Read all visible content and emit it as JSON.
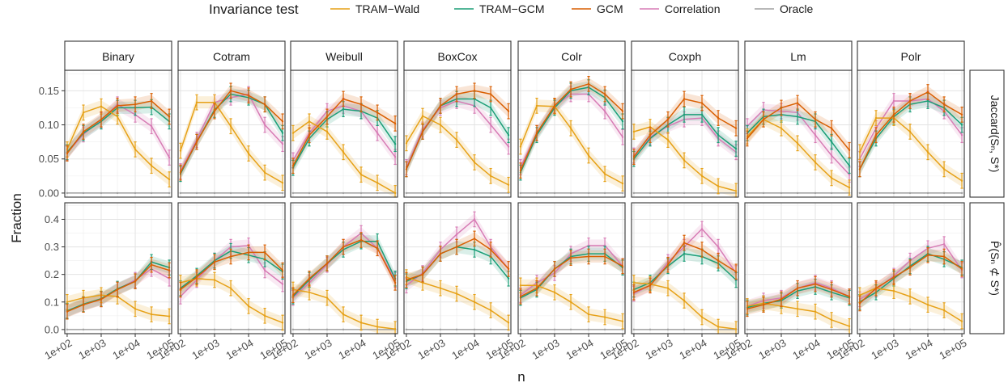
{
  "chart_data": {
    "type": "line",
    "legend": {
      "title": "Invariance test",
      "position": "top",
      "entries": [
        "TRAM−Wald",
        "TRAM−GCM",
        "GCM",
        "Correlation",
        "Oracle"
      ]
    },
    "colors": {
      "TRAM−Wald": "#E6A117",
      "TRAM−GCM": "#1B9E77",
      "GCM": "#D95F02",
      "Correlation": "#D77CB5",
      "Oracle": "#A0A0A0"
    },
    "xlabel": "n",
    "ylabel": "Fraction",
    "x_scale": "log10",
    "x": [
      100,
      300,
      1000,
      3000,
      10000,
      30000,
      100000
    ],
    "x_ticks": [
      {
        "value": 100,
        "label": "1e+02"
      },
      {
        "value": 1000,
        "label": "1e+03"
      },
      {
        "value": 10000,
        "label": "1e+04"
      },
      {
        "value": 100000,
        "label": "1e+05"
      }
    ],
    "columns": [
      "Binary",
      "Cotram",
      "Weibull",
      "BoxCox",
      "Colr",
      "Coxph",
      "Lm",
      "Polr"
    ],
    "rows": [
      {
        "strip": "Jaccard(Sₙ, S*)",
        "ylim": [
          -0.006,
          0.18
        ],
        "yticks": [
          0.0,
          0.05,
          0.1,
          0.15
        ],
        "ytick_labels": [
          "0.00",
          "0.05",
          "0.10",
          "0.15"
        ],
        "panels": {
          "Binary": {
            "TRAM−Wald": [
              0.064,
              0.118,
              0.127,
              0.112,
              0.064,
              0.04,
              0.02
            ],
            "TRAM−GCM": [
              0.06,
              0.088,
              0.105,
              0.125,
              0.125,
              0.126,
              0.105
            ],
            "GCM": [
              0.058,
              0.09,
              0.108,
              0.128,
              0.13,
              0.135,
              0.112
            ],
            "Correlation": [
              0.059,
              0.086,
              0.107,
              0.13,
              0.115,
              0.098,
              0.052
            ],
            "Oracle": [
              0,
              0,
              0,
              0,
              0,
              0,
              0
            ]
          },
          "Cotram": {
            "TRAM−Wald": [
              0.062,
              0.133,
              0.133,
              0.098,
              0.058,
              0.03,
              0.015
            ],
            "TRAM−GCM": [
              0.028,
              0.075,
              0.122,
              0.145,
              0.14,
              0.13,
              0.088
            ],
            "GCM": [
              0.03,
              0.075,
              0.12,
              0.15,
              0.143,
              0.13,
              0.105
            ],
            "Correlation": [
              0.032,
              0.078,
              0.133,
              0.14,
              0.145,
              0.1,
              0.072
            ],
            "Oracle": [
              0,
              0,
              0,
              0,
              0,
              0,
              0
            ]
          },
          "Weibull": {
            "TRAM−Wald": [
              0.088,
              0.105,
              0.09,
              0.06,
              0.027,
              0.015,
              0.0
            ],
            "TRAM−GCM": [
              0.037,
              0.08,
              0.108,
              0.123,
              0.12,
              0.11,
              0.072
            ],
            "GCM": [
              0.04,
              0.085,
              0.112,
              0.138,
              0.13,
              0.118,
              0.102
            ],
            "Correlation": [
              0.048,
              0.088,
              0.12,
              0.128,
              0.12,
              0.088,
              0.053
            ],
            "Oracle": [
              0,
              0,
              0,
              0,
              0,
              0,
              0
            ]
          },
          "BoxCox": {
            "TRAM−Wald": [
              0.073,
              0.113,
              0.1,
              0.078,
              0.045,
              0.025,
              0.012
            ],
            "TRAM−GCM": [
              0.035,
              0.09,
              0.128,
              0.138,
              0.138,
              0.125,
              0.085
            ],
            "GCM": [
              0.035,
              0.09,
              0.128,
              0.145,
              0.15,
              0.145,
              0.12
            ],
            "Correlation": [
              0.038,
              0.093,
              0.125,
              0.135,
              0.128,
              0.1,
              0.068
            ],
            "Oracle": [
              0,
              0,
              0,
              0,
              0,
              0,
              0
            ]
          },
          "Colr": {
            "TRAM−Wald": [
              0.068,
              0.128,
              0.127,
              0.095,
              0.055,
              0.028,
              0.014
            ],
            "TRAM−GCM": [
              0.03,
              0.085,
              0.125,
              0.15,
              0.155,
              0.14,
              0.105
            ],
            "GCM": [
              0.033,
              0.088,
              0.128,
              0.152,
              0.16,
              0.145,
              0.12
            ],
            "Correlation": [
              0.038,
              0.088,
              0.127,
              0.145,
              0.145,
              0.12,
              0.082
            ],
            "Oracle": [
              0,
              0,
              0,
              0,
              0,
              0,
              0
            ]
          },
          "Coxph": {
            "TRAM−Wald": [
              0.09,
              0.097,
              0.078,
              0.048,
              0.025,
              0.01,
              0.003
            ],
            "TRAM−GCM": [
              0.05,
              0.08,
              0.1,
              0.115,
              0.115,
              0.085,
              0.065
            ],
            "GCM": [
              0.053,
              0.085,
              0.108,
              0.138,
              0.132,
              0.11,
              0.095
            ],
            "Correlation": [
              0.055,
              0.082,
              0.098,
              0.108,
              0.11,
              0.08,
              0.06
            ],
            "Oracle": [
              0,
              0,
              0,
              0,
              0,
              0,
              0
            ]
          },
          "Lm": {
            "TRAM−Wald": [
              0.083,
              0.108,
              0.095,
              0.073,
              0.045,
              0.022,
              0.008
            ],
            "TRAM−GCM": [
              0.088,
              0.112,
              0.115,
              0.112,
              0.105,
              0.075,
              0.04
            ],
            "GCM": [
              0.08,
              0.108,
              0.125,
              0.132,
              0.108,
              0.095,
              0.063
            ],
            "Correlation": [
              0.098,
              0.122,
              0.12,
              0.118,
              0.085,
              0.055,
              0.027
            ],
            "Oracle": [
              0,
              0,
              0,
              0,
              0,
              0,
              0
            ]
          },
          "Polr": {
            "TRAM−Wald": [
              0.06,
              0.11,
              0.11,
              0.09,
              0.06,
              0.035,
              0.018
            ],
            "TRAM−GCM": [
              0.035,
              0.08,
              0.112,
              0.13,
              0.135,
              0.125,
              0.1
            ],
            "GCM": [
              0.035,
              0.085,
              0.115,
              0.135,
              0.148,
              0.13,
              0.115
            ],
            "Correlation": [
              0.05,
              0.095,
              0.135,
              0.135,
              0.138,
              0.12,
              0.085
            ],
            "Oracle": [
              0,
              0,
              0,
              0,
              0,
              0,
              0
            ]
          }
        }
      },
      {
        "strip": "P̂(Sₙ ⊄ S*)",
        "ylim": [
          -0.015,
          0.46
        ],
        "yticks": [
          0.0,
          0.1,
          0.2,
          0.3,
          0.4
        ],
        "ytick_labels": [
          "0.0",
          "0.1",
          "0.2",
          "0.3",
          "0.4"
        ],
        "panels": {
          "Binary": {
            "TRAM−Wald": [
              0.1,
              0.115,
              0.125,
              0.12,
              0.075,
              0.055,
              0.048
            ],
            "TRAM−GCM": [
              0.068,
              0.092,
              0.112,
              0.148,
              0.175,
              0.245,
              0.225
            ],
            "GCM": [
              0.065,
              0.09,
              0.11,
              0.145,
              0.175,
              0.235,
              0.215
            ],
            "Correlation": [
              0.068,
              0.09,
              0.11,
              0.145,
              0.18,
              0.22,
              0.185
            ],
            "Oracle": [
              0,
              0,
              0,
              0,
              0,
              0,
              0
            ]
          },
          "Cotram": {
            "TRAM−Wald": [
              0.17,
              0.185,
              0.18,
              0.15,
              0.085,
              0.05,
              0.025
            ],
            "TRAM−GCM": [
              0.15,
              0.195,
              0.25,
              0.285,
              0.27,
              0.255,
              0.21
            ],
            "GCM": [
              0.145,
              0.19,
              0.245,
              0.265,
              0.28,
              0.28,
              0.215
            ],
            "Correlation": [
              0.12,
              0.18,
              0.25,
              0.3,
              0.305,
              0.215,
              0.165
            ],
            "Oracle": [
              0,
              0,
              0,
              0,
              0,
              0,
              0
            ]
          },
          "Weibull": {
            "TRAM−Wald": [
              0.145,
              0.135,
              0.115,
              0.055,
              0.025,
              0.01,
              0.002
            ],
            "TRAM−GCM": [
              0.12,
              0.18,
              0.24,
              0.29,
              0.32,
              0.32,
              0.185
            ],
            "GCM": [
              0.125,
              0.185,
              0.24,
              0.3,
              0.325,
              0.295,
              0.17
            ],
            "Correlation": [
              0.115,
              0.17,
              0.235,
              0.3,
              0.35,
              0.295,
              0.18
            ],
            "Oracle": [
              0,
              0,
              0,
              0,
              0,
              0,
              0
            ]
          },
          "BoxCox": {
            "TRAM−Wald": [
              0.19,
              0.17,
              0.15,
              0.13,
              0.1,
              0.07,
              0.025
            ],
            "TRAM−GCM": [
              0.175,
              0.2,
              0.275,
              0.3,
              0.29,
              0.265,
              0.185
            ],
            "GCM": [
              0.18,
              0.2,
              0.275,
              0.3,
              0.33,
              0.29,
              0.22
            ],
            "Correlation": [
              0.16,
              0.205,
              0.29,
              0.345,
              0.4,
              0.3,
              0.22
            ],
            "Oracle": [
              0,
              0,
              0,
              0,
              0,
              0,
              0
            ]
          },
          "Colr": {
            "TRAM−Wald": [
              0.16,
              0.16,
              0.135,
              0.1,
              0.055,
              0.045,
              0.03
            ],
            "TRAM−GCM": [
              0.115,
              0.145,
              0.22,
              0.265,
              0.275,
              0.275,
              0.225
            ],
            "GCM": [
              0.12,
              0.15,
              0.22,
              0.26,
              0.265,
              0.265,
              0.23
            ],
            "Correlation": [
              0.125,
              0.17,
              0.205,
              0.275,
              0.305,
              0.305,
              0.23
            ],
            "Oracle": [
              0,
              0,
              0,
              0,
              0,
              0,
              0
            ]
          },
          "Coxph": {
            "TRAM−Wald": [
              0.17,
              0.165,
              0.15,
              0.105,
              0.045,
              0.01,
              0.002
            ],
            "TRAM−GCM": [
              0.145,
              0.17,
              0.23,
              0.275,
              0.265,
              0.24,
              0.18
            ],
            "GCM": [
              0.135,
              0.16,
              0.235,
              0.315,
              0.29,
              0.25,
              0.21
            ],
            "Correlation": [
              0.13,
              0.16,
              0.245,
              0.3,
              0.365,
              0.3,
              0.205
            ],
            "Oracle": [
              0,
              0,
              0,
              0,
              0,
              0,
              0
            ]
          },
          "Lm": {
            "TRAM−Wald": [
              0.085,
              0.095,
              0.085,
              0.075,
              0.065,
              0.035,
              0.012
            ],
            "TRAM−GCM": [
              0.08,
              0.095,
              0.105,
              0.14,
              0.155,
              0.135,
              0.115
            ],
            "GCM": [
              0.075,
              0.09,
              0.11,
              0.15,
              0.165,
              0.145,
              0.12
            ],
            "Correlation": [
              0.085,
              0.105,
              0.115,
              0.15,
              0.17,
              0.15,
              0.12
            ],
            "Oracle": [
              0,
              0,
              0,
              0,
              0,
              0,
              0
            ]
          },
          "Polr": {
            "TRAM−Wald": [
              0.125,
              0.15,
              0.14,
              0.12,
              0.09,
              0.07,
              0.03
            ],
            "TRAM−GCM": [
              0.1,
              0.135,
              0.185,
              0.23,
              0.275,
              0.255,
              0.225
            ],
            "GCM": [
              0.095,
              0.15,
              0.19,
              0.225,
              0.27,
              0.265,
              0.22
            ],
            "Correlation": [
              0.11,
              0.145,
              0.195,
              0.25,
              0.295,
              0.31,
              0.215
            ],
            "Oracle": [
              0,
              0,
              0,
              0,
              0,
              0,
              0
            ]
          }
        }
      }
    ]
  }
}
